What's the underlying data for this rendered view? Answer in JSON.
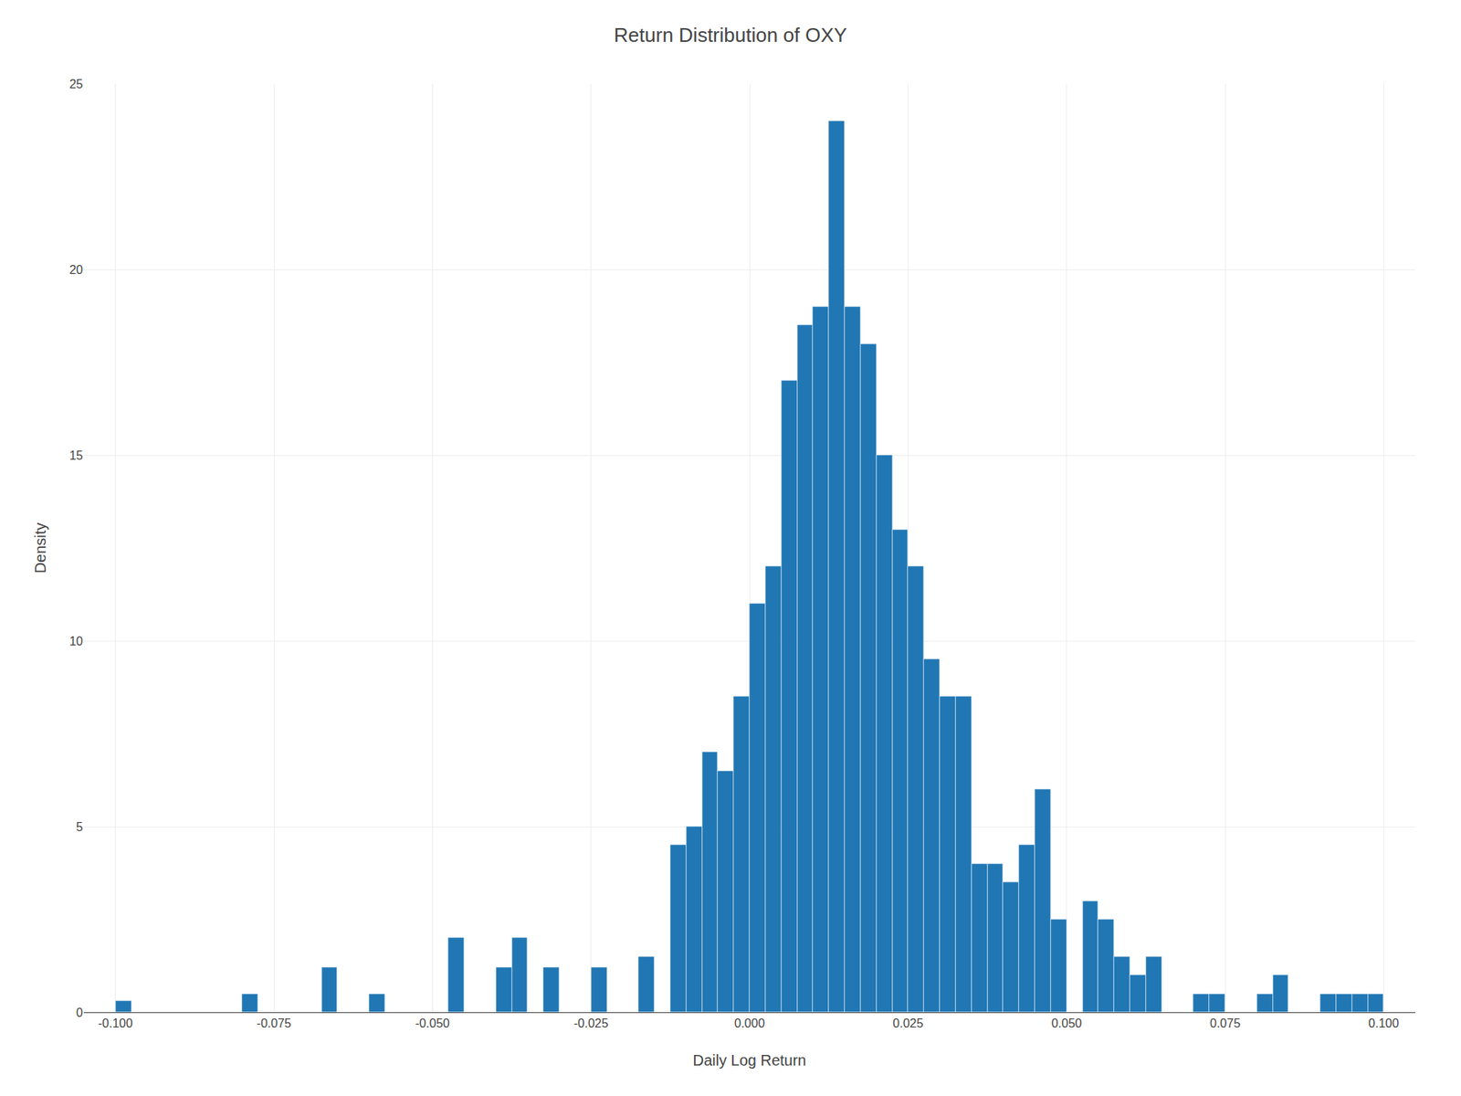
{
  "chart_data": {
    "type": "histogram",
    "title": "Return Distribution of OXY",
    "x_label": "Daily Log Return",
    "y_label": "Density",
    "color": "#2077b4",
    "bins": [
      -0.1,
      -0.0975,
      -0.095,
      -0.0925,
      -0.09,
      -0.0875,
      -0.085,
      -0.0825,
      -0.08,
      -0.0775,
      -0.075,
      -0.0725,
      -0.07,
      -0.0675,
      -0.065,
      -0.0625,
      -0.06,
      -0.0575,
      -0.055,
      -0.0525,
      -0.05,
      -0.0475,
      -0.045,
      -0.0425,
      -0.04,
      -0.0375,
      -0.035,
      -0.0325,
      -0.03,
      -0.0275,
      -0.025,
      -0.0225,
      -0.02,
      -0.0175,
      -0.015,
      -0.0125,
      -0.01,
      -0.0075,
      -0.005,
      -0.0025,
      0,
      0.0025,
      0.005,
      0.0075,
      0.01,
      0.0125,
      0.015,
      0.0175,
      0.02,
      0.0225,
      0.025,
      0.0275,
      0.03,
      0.0325,
      0.035,
      0.0375,
      0.04,
      0.0425,
      0.045,
      0.0475,
      0.05,
      0.0525,
      0.055,
      0.0575,
      0.06,
      0.0625,
      0.065,
      0.0675,
      0.07,
      0.0725,
      0.075,
      0.0775,
      0.08,
      0.0825,
      0.085,
      0.0875,
      0.09,
      0.0925,
      0.095,
      0.0975,
      0.1
    ],
    "values": [
      0.3,
      0.0,
      0.0,
      0.0,
      0.0,
      0.0,
      0.0,
      0.0,
      0.5,
      0.0,
      0.0,
      0.0,
      0.0,
      1.2,
      0.0,
      0.0,
      0.5,
      0.0,
      0.0,
      0.0,
      0.0,
      2.0,
      0.0,
      0.0,
      1.2,
      2.0,
      0.0,
      1.2,
      0.0,
      0.0,
      1.2,
      0.0,
      0.0,
      1.5,
      0.0,
      4.5,
      5.0,
      7.0,
      6.5,
      8.5,
      11.0,
      12.0,
      17.0,
      18.5,
      19.0,
      24.0,
      19.0,
      18.0,
      15.0,
      13.0,
      12.0,
      9.5,
      8.5,
      8.5,
      4.0,
      4.0,
      3.5,
      4.5,
      6.0,
      2.5,
      0.0,
      3.0,
      2.5,
      1.5,
      1.0,
      1.5,
      0.0,
      0.0,
      0.5,
      0.5,
      0.0,
      0.0,
      0.5,
      1.0,
      0.0,
      0.0,
      0.5,
      0.5,
      0.5,
      0.5
    ],
    "xlim": [
      -0.105,
      0.105
    ],
    "ylim": [
      0,
      25
    ],
    "xticks": [
      {
        "value": -0.1,
        "label": "-0.100"
      },
      {
        "value": -0.075,
        "label": "-0.075"
      },
      {
        "value": -0.05,
        "label": "-0.050"
      },
      {
        "value": -0.025,
        "label": "-0.025"
      },
      {
        "value": 0,
        "label": "0.000"
      },
      {
        "value": 0.025,
        "label": "0.025"
      },
      {
        "value": 0.05,
        "label": "0.050"
      },
      {
        "value": 0.075,
        "label": "0.075"
      },
      {
        "value": 0.1,
        "label": "0.100"
      }
    ],
    "yticks": [
      0,
      5,
      10,
      15,
      20,
      25
    ],
    "grid": true
  }
}
